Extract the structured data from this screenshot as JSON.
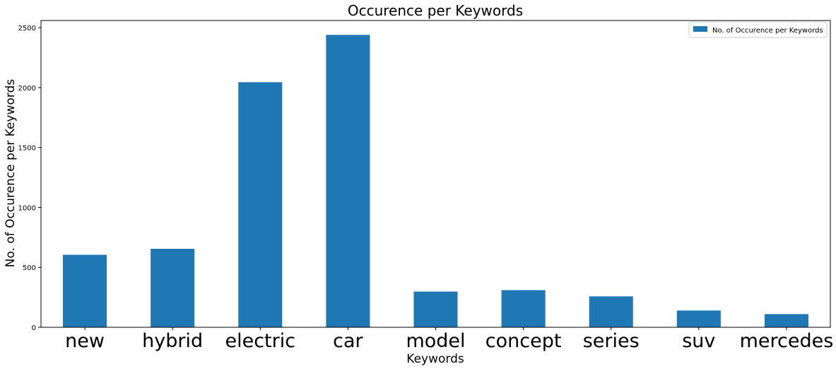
{
  "chart_data": {
    "type": "bar",
    "title": "Occurence per Keywords",
    "xlabel": "Keywords",
    "ylabel": "No. of Occurence per Keywords",
    "categories": [
      "new",
      "hybrid",
      "electric",
      "car",
      "model",
      "concept",
      "series",
      "suv",
      "mercedes"
    ],
    "series": [
      {
        "name": "No. of Occurence per Keywords",
        "values": [
          605,
          655,
          2045,
          2440,
          298,
          310,
          258,
          140,
          110
        ]
      }
    ],
    "ylim": [
      0,
      2560
    ],
    "yticks": [
      0,
      500,
      1000,
      1500,
      2000,
      2500
    ],
    "grid": false,
    "legend_position": "top-right",
    "bar_color": "#1f77b4"
  }
}
